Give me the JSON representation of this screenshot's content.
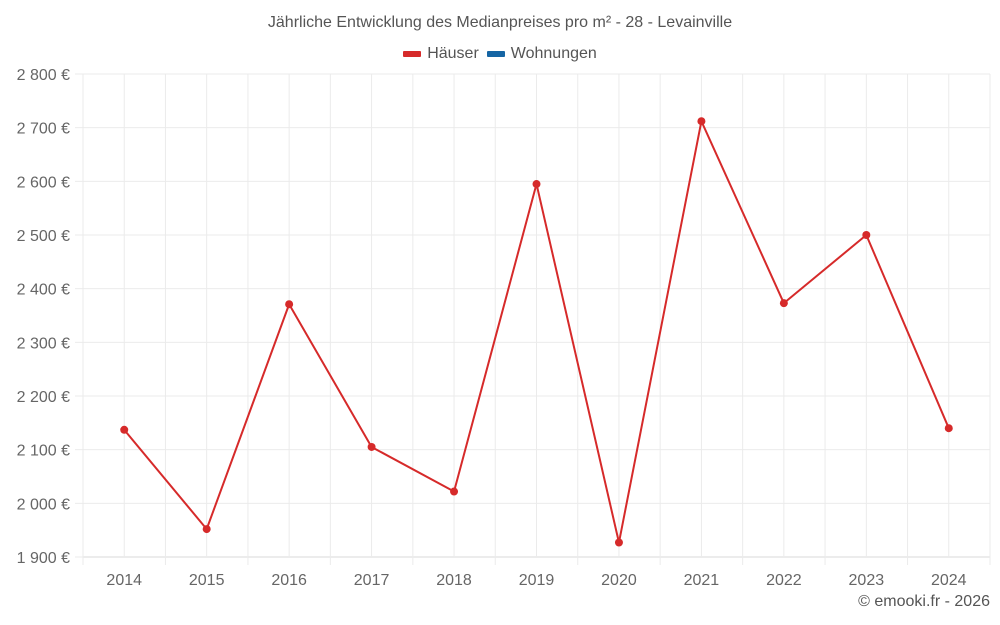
{
  "title": "Jährliche Entwicklung des Medianpreises pro m² - 28 - Levainville",
  "legend": [
    {
      "label": "Häuser",
      "color": "#d62a2a"
    },
    {
      "label": "Wohnungen",
      "color": "#1565a4"
    }
  ],
  "credit": "© emooki.fr - 2026",
  "colors": {
    "houses": "#d62a2a",
    "apartments": "#1565a4",
    "grid": "#ebebeb",
    "axis": "#d9d9d9"
  },
  "chart_data": {
    "type": "line",
    "title": "Jährliche Entwicklung des Medianpreises pro m² - 28 - Levainville",
    "xlabel": "",
    "ylabel": "",
    "categories": [
      "2014",
      "2015",
      "2016",
      "2017",
      "2018",
      "2019",
      "2020",
      "2021",
      "2022",
      "2023",
      "2024"
    ],
    "series": [
      {
        "name": "Häuser",
        "color": "#d62a2a",
        "values": [
          2137,
          1952,
          2371,
          2105,
          2022,
          2595,
          1927,
          2712,
          2373,
          2500,
          2140
        ]
      },
      {
        "name": "Wohnungen",
        "color": "#1565a4",
        "values": []
      }
    ],
    "ylim": [
      1900,
      2800
    ],
    "yticks": [
      1900,
      2000,
      2100,
      2200,
      2300,
      2400,
      2500,
      2600,
      2700,
      2800
    ],
    "ytick_labels": [
      "1 900 €",
      "2 000 €",
      "2 100 €",
      "2 200 €",
      "2 300 €",
      "2 400 €",
      "2 500 €",
      "2 600 €",
      "2 700 €",
      "2 800 €"
    ],
    "grid": true,
    "legend_position": "top"
  }
}
